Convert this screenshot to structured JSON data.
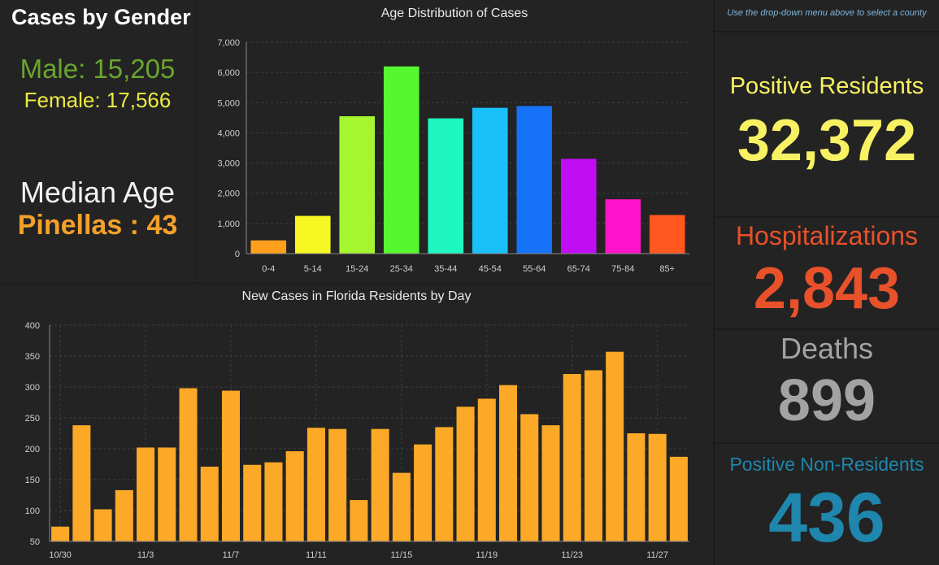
{
  "gender": {
    "title": "Cases by Gender",
    "male_label": "Male: 15,205",
    "female_label": "Female: 17,566"
  },
  "median": {
    "title": "Median Age",
    "value": "Pinellas : 43"
  },
  "note": "Use the drop-down menu above to select a county",
  "stats": {
    "positive_residents": {
      "label": "Positive Residents",
      "value": "32,372",
      "color": "#f7f163"
    },
    "hospitalizations": {
      "label": "Hospitalizations",
      "value": "2,843",
      "color": "#e8512a"
    },
    "deaths": {
      "label": "Deaths",
      "value": "899",
      "color": "#a3a3a3"
    },
    "positive_non_residents": {
      "label": "Positive Non-Residents",
      "value": "436",
      "color": "#1f86ad"
    }
  },
  "chart_data": [
    {
      "type": "bar",
      "title": "Age Distribution of Cases",
      "categories": [
        "0-4",
        "5-14",
        "15-24",
        "25-34",
        "35-44",
        "45-54",
        "55-64",
        "65-74",
        "75-84",
        "85+"
      ],
      "values": [
        440,
        1250,
        4550,
        6200,
        4480,
        4830,
        4890,
        3140,
        1800,
        1280
      ],
      "colors": [
        "#ff9f1c",
        "#f7f724",
        "#a5f52f",
        "#56f72e",
        "#1ef7c0",
        "#19c0f9",
        "#1672f6",
        "#c10df3",
        "#ff12c9",
        "#ff571d"
      ],
      "ylim": [
        0,
        7000
      ],
      "yticks": [
        "0",
        "1,000",
        "2,000",
        "3,000",
        "4,000",
        "5,000",
        "6,000",
        "7,000"
      ],
      "ytick_values": [
        0,
        1000,
        2000,
        3000,
        4000,
        5000,
        6000,
        7000
      ],
      "grid": true
    },
    {
      "type": "bar",
      "title": "New Cases in Florida Residents by Day",
      "values": [
        74,
        238,
        102,
        133,
        202,
        202,
        298,
        171,
        294,
        174,
        178,
        196,
        234,
        232,
        117,
        232,
        161,
        207,
        235,
        268,
        281,
        303,
        256,
        238,
        321,
        327,
        357,
        225,
        224,
        187
      ],
      "xtick_labels": [
        "10/30",
        "11/3",
        "11/7",
        "11/11",
        "11/15",
        "11/19",
        "11/23",
        "11/27"
      ],
      "xtick_positions": [
        0,
        4,
        8,
        12,
        16,
        20,
        24,
        28
      ],
      "ylim": [
        50,
        400
      ],
      "yticks": [
        "50",
        "100",
        "150",
        "200",
        "250",
        "300",
        "350",
        "400"
      ],
      "ytick_values": [
        50,
        100,
        150,
        200,
        250,
        300,
        350,
        400
      ],
      "bar_color": "#fba926",
      "grid": true
    }
  ]
}
